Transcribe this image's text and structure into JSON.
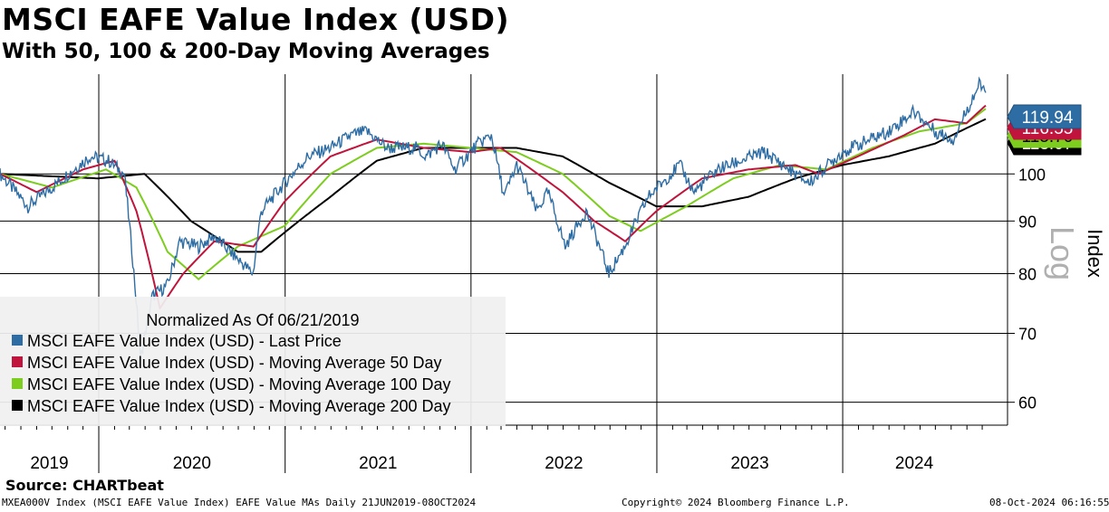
{
  "header": {
    "title": "MSCI EAFE Value Index (USD)",
    "subtitle": "With 50, 100 & 200-Day Moving Averages"
  },
  "chart_data": {
    "type": "line",
    "title": "MSCI EAFE Value Index (USD)",
    "subtitle": "With 50, 100 & 200-Day Moving Averages",
    "x_axis": {
      "labels": [
        "2019",
        "2020",
        "2021",
        "2022",
        "2023",
        "2024"
      ],
      "range": [
        "2019-06-21",
        "2024-10-08"
      ]
    },
    "y_axis": {
      "label": "Index",
      "scale_note": "Log",
      "scale": "log",
      "ticks": [
        60,
        70,
        80,
        90,
        100
      ],
      "range": [
        57,
        125
      ]
    },
    "grid": true,
    "legend": {
      "placement": "bottom-left",
      "heading": "Normalized As Of 06/21/2019",
      "entries": [
        "MSCI EAFE Value Index (USD) - Last Price",
        "MSCI EAFE Value Index (USD) - Moving Average 50 Day",
        "MSCI EAFE Value Index (USD) - Moving Average 100 Day",
        "MSCI EAFE Value Index (USD) - Moving Average 200 Day"
      ]
    },
    "last_value_tags": {
      "last_price": "119.94",
      "ma50": "116.55",
      "ma100": "115.70",
      "ma200": "113.07"
    },
    "colors": {
      "last_price": "#2e6da4",
      "ma50": "#c0143c",
      "ma100": "#7ccd1e",
      "ma200": "#000000"
    },
    "series": [
      {
        "name": "MSCI EAFE Value Index (USD) - Last Price",
        "key": "last_price",
        "points": [
          [
            "2019-06-21",
            100
          ],
          [
            "2019-08-15",
            93
          ],
          [
            "2019-10-01",
            97
          ],
          [
            "2019-12-15",
            104
          ],
          [
            "2020-01-20",
            103
          ],
          [
            "2020-02-20",
            100
          ],
          [
            "2020-03-12",
            78
          ],
          [
            "2020-03-23",
            66
          ],
          [
            "2020-04-15",
            76
          ],
          [
            "2020-05-15",
            78
          ],
          [
            "2020-06-08",
            86
          ],
          [
            "2020-07-15",
            85
          ],
          [
            "2020-08-15",
            87
          ],
          [
            "2020-09-15",
            84
          ],
          [
            "2020-10-30",
            80
          ],
          [
            "2020-11-15",
            92
          ],
          [
            "2020-12-31",
            98
          ],
          [
            "2021-02-15",
            104
          ],
          [
            "2021-03-31",
            106
          ],
          [
            "2021-05-10",
            109
          ],
          [
            "2021-06-10",
            110
          ],
          [
            "2021-07-20",
            106
          ],
          [
            "2021-09-15",
            106
          ],
          [
            "2021-10-05",
            104
          ],
          [
            "2021-11-05",
            107
          ],
          [
            "2021-11-30",
            101
          ],
          [
            "2022-01-15",
            107
          ],
          [
            "2022-02-10",
            109
          ],
          [
            "2022-03-07",
            95
          ],
          [
            "2022-04-01",
            102
          ],
          [
            "2022-05-10",
            92
          ],
          [
            "2022-06-01",
            96
          ],
          [
            "2022-07-05",
            85
          ],
          [
            "2022-08-15",
            92
          ],
          [
            "2022-09-29",
            80
          ],
          [
            "2022-10-30",
            85
          ],
          [
            "2022-12-15",
            95
          ],
          [
            "2023-02-15",
            102
          ],
          [
            "2023-03-15",
            96
          ],
          [
            "2023-04-30",
            101
          ],
          [
            "2023-06-15",
            103
          ],
          [
            "2023-07-31",
            105
          ],
          [
            "2023-09-30",
            100
          ],
          [
            "2023-10-27",
            98
          ],
          [
            "2023-12-31",
            105
          ],
          [
            "2024-03-31",
            110
          ],
          [
            "2024-05-20",
            115
          ],
          [
            "2024-06-30",
            110
          ],
          [
            "2024-08-05",
            108
          ],
          [
            "2024-09-25",
            122
          ],
          [
            "2024-10-08",
            119.94
          ]
        ]
      },
      {
        "name": "MSCI EAFE Value Index (USD) - Moving Average 50 Day",
        "key": "ma50",
        "points": [
          [
            "2019-06-21",
            100
          ],
          [
            "2019-09-01",
            96
          ],
          [
            "2019-12-01",
            101
          ],
          [
            "2020-02-01",
            103
          ],
          [
            "2020-03-15",
            92
          ],
          [
            "2020-04-30",
            74
          ],
          [
            "2020-06-15",
            80
          ],
          [
            "2020-08-15",
            86
          ],
          [
            "2020-10-31",
            85
          ],
          [
            "2020-12-31",
            94
          ],
          [
            "2021-03-31",
            104
          ],
          [
            "2021-06-30",
            108
          ],
          [
            "2021-09-30",
            106
          ],
          [
            "2021-12-31",
            105
          ],
          [
            "2022-02-28",
            106
          ],
          [
            "2022-04-30",
            101
          ],
          [
            "2022-06-30",
            96
          ],
          [
            "2022-08-31",
            90
          ],
          [
            "2022-10-31",
            86
          ],
          [
            "2022-12-31",
            92
          ],
          [
            "2023-03-31",
            99
          ],
          [
            "2023-06-30",
            101
          ],
          [
            "2023-09-30",
            102
          ],
          [
            "2023-11-15",
            100
          ],
          [
            "2024-01-31",
            104
          ],
          [
            "2024-04-30",
            109
          ],
          [
            "2024-06-30",
            113
          ],
          [
            "2024-08-31",
            112
          ],
          [
            "2024-10-08",
            116.55
          ]
        ]
      },
      {
        "name": "MSCI EAFE Value Index (USD) - Moving Average 100 Day",
        "key": "ma100",
        "points": [
          [
            "2019-06-21",
            100
          ],
          [
            "2019-10-01",
            97
          ],
          [
            "2020-01-15",
            101
          ],
          [
            "2020-03-15",
            97
          ],
          [
            "2020-05-15",
            84
          ],
          [
            "2020-07-15",
            79
          ],
          [
            "2020-09-30",
            85
          ],
          [
            "2020-12-31",
            89
          ],
          [
            "2021-03-31",
            100
          ],
          [
            "2021-06-30",
            106
          ],
          [
            "2021-09-30",
            107
          ],
          [
            "2021-12-31",
            106
          ],
          [
            "2022-03-31",
            105
          ],
          [
            "2022-06-30",
            100
          ],
          [
            "2022-09-30",
            91
          ],
          [
            "2022-11-30",
            88
          ],
          [
            "2023-02-28",
            93
          ],
          [
            "2023-05-31",
            99
          ],
          [
            "2023-08-31",
            102
          ],
          [
            "2023-11-30",
            101
          ],
          [
            "2024-02-29",
            106
          ],
          [
            "2024-05-31",
            110
          ],
          [
            "2024-08-31",
            112
          ],
          [
            "2024-10-08",
            115.7
          ]
        ]
      },
      {
        "name": "MSCI EAFE Value Index (USD) - Moving Average 200 Day",
        "key": "ma200",
        "points": [
          [
            "2019-06-21",
            100
          ],
          [
            "2019-12-31",
            99
          ],
          [
            "2020-03-31",
            100
          ],
          [
            "2020-06-30",
            90
          ],
          [
            "2020-09-30",
            84
          ],
          [
            "2020-11-15",
            84
          ],
          [
            "2021-03-31",
            95
          ],
          [
            "2021-06-30",
            103
          ],
          [
            "2021-09-30",
            106
          ],
          [
            "2021-12-31",
            106
          ],
          [
            "2022-03-31",
            106
          ],
          [
            "2022-06-30",
            104
          ],
          [
            "2022-09-30",
            98
          ],
          [
            "2022-12-31",
            93
          ],
          [
            "2023-03-31",
            93
          ],
          [
            "2023-06-30",
            95
          ],
          [
            "2023-09-30",
            99
          ],
          [
            "2023-12-31",
            102
          ],
          [
            "2024-03-31",
            104
          ],
          [
            "2024-06-30",
            107
          ],
          [
            "2024-10-08",
            113.07
          ]
        ]
      }
    ]
  },
  "footer": {
    "source": "Source: CHARTbeat",
    "left": "MXEA000V Index (MSCI EAFE Value Index) EAFE Value MAs  Daily 21JUN2019-08OCT2024",
    "center": "Copyright© 2024 Bloomberg Finance L.P.",
    "right": "08-Oct-2024 06:16:55"
  }
}
